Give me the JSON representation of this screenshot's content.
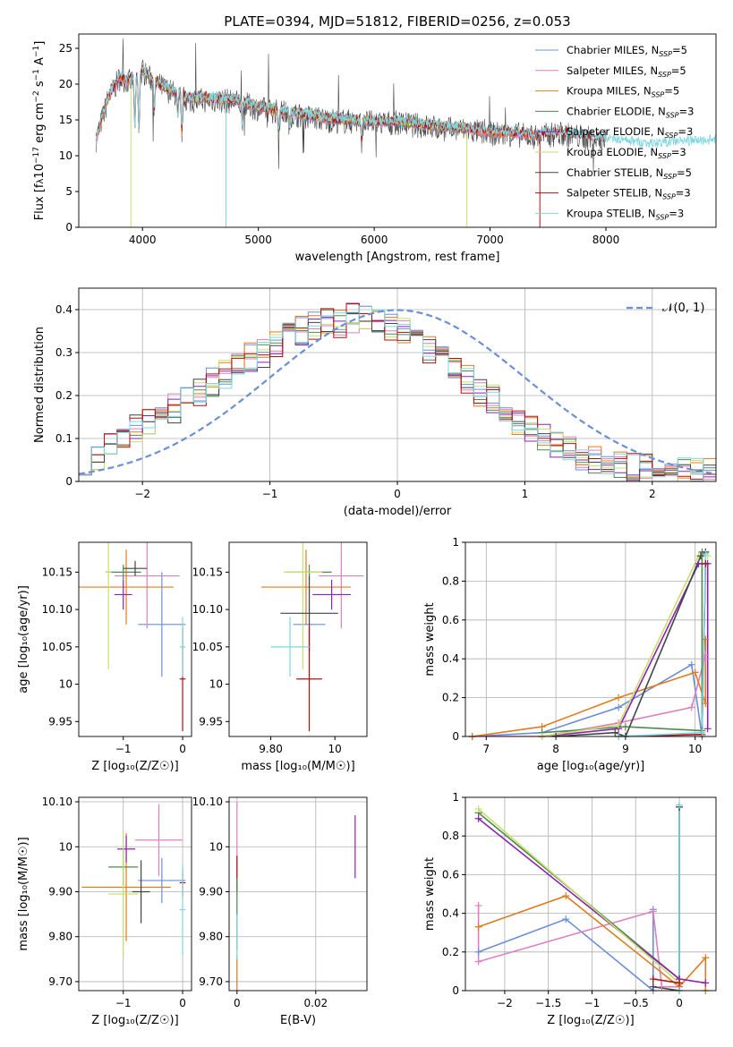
{
  "colors": {
    "Chabrier MILES": "#6a8fd8",
    "Salpeter MILES": "#e07fc0",
    "Kroupa MILES": "#e07b20",
    "Chabrier ELODIE": "#4f8a4f",
    "Salpeter ELODIE": "#8b22b0",
    "Kroupa ELODIE": "#c6e06a",
    "Chabrier STELIB": "#444444",
    "Salpeter STELIB": "#b01010",
    "Kroupa STELIB": "#7fd6e0",
    "normal": "#6a8fd8"
  },
  "chart_data": [
    {
      "id": "spectrum",
      "type": "line",
      "title": "PLATE=0394, MJD=51812, FIBERID=0256, z=0.053",
      "xlabel": "wavelength [Angstrom, rest frame]",
      "ylabel": "Flux [f",
      "ylabel_parts": [
        "Flux [f",
        "λ",
        "10",
        "−17",
        " erg cm",
        "−2",
        " s",
        "−1",
        " A",
        "−1",
        "]"
      ],
      "xlim": [
        3450,
        8950
      ],
      "ylim": [
        0,
        27
      ],
      "xticks": [
        4000,
        5000,
        6000,
        7000,
        8000
      ],
      "yticks": [
        0,
        5,
        10,
        15,
        20,
        25
      ],
      "grid": false,
      "legend_placement": "top-right",
      "legend": [
        {
          "name": "Chabrier MILES",
          "sub": "SSP",
          "n": "5"
        },
        {
          "name": "Salpeter MILES",
          "sub": "SSP",
          "n": "5"
        },
        {
          "name": "Kroupa MILES",
          "sub": "SSP",
          "n": "5"
        },
        {
          "name": "Chabrier ELODIE",
          "sub": "SSP",
          "n": "3"
        },
        {
          "name": "Salpeter ELODIE",
          "sub": "SSP",
          "n": "3"
        },
        {
          "name": "Kroupa ELODIE",
          "sub": "SSP",
          "n": "3"
        },
        {
          "name": "Chabrier STELIB",
          "sub": "SSP",
          "n": "5"
        },
        {
          "name": "Salpeter STELIB",
          "sub": "SSP",
          "n": "3"
        },
        {
          "name": "Kroupa STELIB",
          "sub": "SSP",
          "n": "3"
        }
      ],
      "anchors": [
        [
          3600,
          12.5
        ],
        [
          3700,
          18
        ],
        [
          3800,
          21
        ],
        [
          3900,
          20.5
        ],
        [
          4000,
          22
        ],
        [
          4100,
          20.5
        ],
        [
          4200,
          19.5
        ],
        [
          4400,
          18
        ],
        [
          4600,
          18
        ],
        [
          4800,
          17.8
        ],
        [
          5000,
          16.8
        ],
        [
          5200,
          16.3
        ],
        [
          5400,
          15.7
        ],
        [
          5600,
          15.2
        ],
        [
          5800,
          15
        ],
        [
          6000,
          14.8
        ],
        [
          6200,
          14.8
        ],
        [
          6400,
          14.4
        ],
        [
          6600,
          14
        ],
        [
          6800,
          13.8
        ],
        [
          7000,
          13.3
        ],
        [
          7200,
          13.2
        ],
        [
          7400,
          12.9
        ],
        [
          7600,
          13.3
        ],
        [
          7800,
          12.8
        ],
        [
          8000,
          12.3
        ],
        [
          8200,
          11.8
        ],
        [
          8400,
          11.5
        ],
        [
          8600,
          11.8
        ],
        [
          8800,
          11.9
        ],
        [
          8950,
          12
        ]
      ],
      "absorption_dips": [
        [
          3934,
          7
        ],
        [
          3969,
          8
        ],
        [
          4102,
          4
        ],
        [
          4305,
          3
        ],
        [
          4340,
          5
        ],
        [
          4861,
          3
        ],
        [
          5175,
          3
        ],
        [
          5270,
          2
        ],
        [
          5892,
          2.5
        ]
      ],
      "series_ranges": {
        "Chabrier MILES": [
          3600,
          7400
        ],
        "Salpeter MILES": [
          3600,
          7400
        ],
        "Kroupa MILES": [
          3600,
          7400
        ],
        "Chabrier ELODIE": [
          3900,
          6800
        ],
        "Salpeter ELODIE": [
          3900,
          6800
        ],
        "Kroupa ELODIE": [
          3900,
          6800
        ],
        "Chabrier STELIB": [
          3600,
          8000
        ],
        "Salpeter STELIB": [
          3600,
          8000
        ],
        "Kroupa STELIB": [
          3600,
          8950
        ]
      }
    },
    {
      "id": "residuals",
      "type": "line",
      "xlabel": "(data-model)/error",
      "ylabel": "Normed distribution",
      "xlim": [
        -2.5,
        2.5
      ],
      "ylim": [
        0,
        0.45
      ],
      "xticks": [
        -2,
        -1,
        0,
        1,
        2
      ],
      "yticks": [
        0.0,
        0.1,
        0.2,
        0.3,
        0.4
      ],
      "grid": true,
      "legend_placement": "top-right",
      "legend": [
        {
          "name": "𝒩(0, 1)"
        }
      ],
      "bin_width": 0.1,
      "histogram": [
        0.05,
        0.05,
        0.08,
        0.1,
        0.12,
        0.14,
        0.16,
        0.17,
        0.19,
        0.21,
        0.23,
        0.25,
        0.27,
        0.29,
        0.3,
        0.32,
        0.34,
        0.35,
        0.36,
        0.37,
        0.37,
        0.38,
        0.38,
        0.37,
        0.36,
        0.35,
        0.33,
        0.31,
        0.28,
        0.26,
        0.24,
        0.21,
        0.19,
        0.16,
        0.14,
        0.12,
        0.1,
        0.08,
        0.07,
        0.06,
        0.05,
        0.04,
        0.04,
        0.03,
        0.03,
        0.03,
        0.02,
        0.02,
        0.02,
        0.02
      ],
      "normal_curve": {
        "mean": 0,
        "sigma": 1
      }
    },
    {
      "id": "age-vs-Z",
      "type": "scatter",
      "xlabel": "Z [log₁₀(Z/Z☉)]",
      "ylabel": "age  [log₁₀(age/yr)]",
      "xlim": [
        -1.75,
        0.15
      ],
      "ylim": [
        9.93,
        10.19
      ],
      "xticks": [
        -1,
        0
      ],
      "yticks": [
        9.95,
        10.0,
        10.05,
        10.1,
        10.15
      ],
      "grid": false,
      "points": [
        {
          "s": "Chabrier MILES",
          "x": -0.35,
          "xe": 0.4,
          "y": 10.08,
          "ye": 0.07
        },
        {
          "s": "Salpeter MILES",
          "x": -0.6,
          "xe": 0.55,
          "y": 10.145,
          "ye": 0.07
        },
        {
          "s": "Kroupa MILES",
          "x": -0.95,
          "xe": 0.8,
          "y": 10.13,
          "ye": 0.05
        },
        {
          "s": "Chabrier ELODIE",
          "x": -1.0,
          "xe": 0.3,
          "y": 10.15,
          "ye": 0.01
        },
        {
          "s": "Salpeter ELODIE",
          "x": -1.0,
          "xe": 0.15,
          "y": 10.12,
          "ye": 0.02
        },
        {
          "s": "Kroupa ELODIE",
          "x": -1.25,
          "xe": 0.05,
          "y": 10.15,
          "ye": 0.13
        },
        {
          "s": "Chabrier STELIB",
          "x": -0.8,
          "xe": 0.2,
          "y": 10.155,
          "ye": 0.01
        },
        {
          "s": "Salpeter STELIB",
          "x": 0.0,
          "xe": 0.05,
          "y": 10.007,
          "ye": 0.07
        },
        {
          "s": "Kroupa STELIB",
          "x": 0.0,
          "xe": 0.05,
          "y": 10.05,
          "ye": 0.04
        }
      ]
    },
    {
      "id": "age-vs-mass",
      "type": "scatter",
      "xlabel": "mass [log₁₀(M/M☉)]",
      "ylabel": "",
      "xlim": [
        9.67,
        10.1
      ],
      "ylim": [
        9.93,
        10.19
      ],
      "xticks": [
        9.8,
        10.0
      ],
      "yticks": [
        9.95,
        10.0,
        10.05,
        10.1,
        10.15
      ],
      "grid": false,
      "points": [
        {
          "s": "Chabrier MILES",
          "x": 9.92,
          "xe": 0.05,
          "y": 10.08,
          "ye": 0.07
        },
        {
          "s": "Salpeter MILES",
          "x": 10.02,
          "xe": 0.07,
          "y": 10.145,
          "ye": 0.07
        },
        {
          "s": "Kroupa MILES",
          "x": 9.91,
          "xe": 0.14,
          "y": 10.13,
          "ye": 0.05
        },
        {
          "s": "Chabrier ELODIE",
          "x": 9.92,
          "xe": 0.07,
          "y": 10.15,
          "ye": 0.01
        },
        {
          "s": "Salpeter ELODIE",
          "x": 9.99,
          "xe": 0.06,
          "y": 10.12,
          "ye": 0.02
        },
        {
          "s": "Kroupa ELODIE",
          "x": 9.9,
          "xe": 0.06,
          "y": 10.15,
          "ye": 0.13
        },
        {
          "s": "Chabrier STELIB",
          "x": 9.92,
          "xe": 0.09,
          "y": 10.095,
          "ye": 0.05
        },
        {
          "s": "Salpeter STELIB",
          "x": 9.92,
          "xe": 0.04,
          "y": 10.007,
          "ye": 0.07
        },
        {
          "s": "Kroupa STELIB",
          "x": 9.86,
          "xe": 0.06,
          "y": 10.05,
          "ye": 0.04
        }
      ]
    },
    {
      "id": "mass-weight-vs-age",
      "type": "line",
      "xlabel": "age  [log₁₀(age/yr)]",
      "ylabel": "mass weight",
      "xlim": [
        6.7,
        10.3
      ],
      "ylim": [
        0,
        1.0
      ],
      "xticks": [
        7,
        8,
        9,
        10
      ],
      "yticks": [
        0.0,
        0.2,
        0.4,
        0.6,
        0.8,
        1.0
      ],
      "grid": true,
      "series": [
        {
          "s": "Chabrier MILES",
          "x": [
            6.8,
            7.8,
            8.9,
            9.95,
            10.1
          ],
          "y": [
            0.0,
            0.02,
            0.15,
            0.37,
            0.0
          ]
        },
        {
          "s": "Salpeter MILES",
          "x": [
            6.8,
            7.8,
            8.9,
            9.95,
            10.15,
            10.15
          ],
          "y": [
            0.0,
            0.0,
            0.07,
            0.15,
            0.42,
            0.4
          ]
        },
        {
          "s": "Kroupa MILES",
          "x": [
            6.8,
            7.8,
            8.9,
            10.0,
            10.15,
            10.15
          ],
          "y": [
            0.0,
            0.05,
            0.2,
            0.33,
            0.17,
            0.5
          ]
        },
        {
          "s": "Chabrier ELODIE",
          "x": [
            7.8,
            9.0,
            10.1,
            10.1
          ],
          "y": [
            0.02,
            0.05,
            0.03,
            0.95
          ]
        },
        {
          "s": "Salpeter ELODIE",
          "x": [
            7.8,
            8.9,
            10.05,
            10.18,
            10.18
          ],
          "y": [
            0.0,
            0.04,
            0.89,
            0.89,
            0.04
          ]
        },
        {
          "s": "Kroupa ELODIE",
          "x": [
            7.8,
            8.9,
            10.05,
            10.18
          ],
          "y": [
            0.0,
            0.06,
            0.93,
            0.93
          ]
        },
        {
          "s": "Chabrier STELIB",
          "x": [
            8.0,
            8.85,
            9.0,
            10.08,
            10.15
          ],
          "y": [
            0.0,
            0.02,
            0.0,
            0.93,
            0.95
          ]
        },
        {
          "s": "Salpeter STELIB",
          "x": [
            8.9,
            10.1,
            10.15
          ],
          "y": [
            0.0,
            0.01,
            0.89
          ]
        },
        {
          "s": "Kroupa STELIB",
          "x": [
            8.9,
            10.1,
            10.15
          ],
          "y": [
            0.0,
            0.02,
            0.94
          ]
        }
      ]
    },
    {
      "id": "mass-vs-Z",
      "type": "scatter",
      "xlabel": "Z [log₁₀(Z/Z☉)]",
      "ylabel": "mass [log₁₀(M/M☉)]",
      "xlim": [
        -1.75,
        0.15
      ],
      "ylim": [
        9.68,
        10.11
      ],
      "xticks": [
        -1,
        0
      ],
      "yticks": [
        9.7,
        9.8,
        9.9,
        10.0,
        10.1
      ],
      "grid": true,
      "points": [
        {
          "s": "Chabrier MILES",
          "x": -0.35,
          "xe": 0.4,
          "y": 9.925,
          "ye": 0.05
        },
        {
          "s": "Salpeter MILES",
          "x": -0.4,
          "xe": 0.4,
          "y": 10.015,
          "ye": 0.08
        },
        {
          "s": "Kroupa MILES",
          "x": -0.95,
          "xe": 0.75,
          "y": 9.91,
          "ye": 0.12
        },
        {
          "s": "Chabrier ELODIE",
          "x": -1.0,
          "xe": 0.25,
          "y": 9.955,
          "ye": 0.04
        },
        {
          "s": "Salpeter ELODIE",
          "x": -0.95,
          "xe": 0.15,
          "y": 9.995,
          "ye": 0.03
        },
        {
          "s": "Kroupa ELODIE",
          "x": -1.0,
          "xe": 0.25,
          "y": 9.895,
          "ye": 0.14
        },
        {
          "s": "Chabrier STELIB",
          "x": -0.7,
          "xe": 0.15,
          "y": 9.9,
          "ye": 0.07
        },
        {
          "s": "Salpeter STELIB",
          "x": 0.0,
          "xe": 0.05,
          "y": 9.92,
          "ye": 0.03
        },
        {
          "s": "Kroupa STELIB",
          "x": 0.0,
          "xe": 0.05,
          "y": 9.86,
          "ye": 0.1
        }
      ]
    },
    {
      "id": "mass-vs-ebv",
      "type": "scatter",
      "xlabel": "E(B-V)",
      "ylabel": "",
      "xlim": [
        -0.002,
        0.033
      ],
      "ylim": [
        9.68,
        10.11
      ],
      "xticks": [
        0.0,
        0.02
      ],
      "yticks": [
        9.7,
        9.8,
        9.9,
        10.0,
        10.1
      ],
      "grid": true,
      "points": [
        {
          "s": "Salpeter MILES",
          "x": 0.0,
          "y": 10.0,
          "ye": 0.1
        },
        {
          "s": "Kroupa MILES",
          "x": 0.0,
          "y": 9.71,
          "ye": 0.05
        },
        {
          "s": "Salpeter STELIB",
          "x": 0.0,
          "y": 9.94,
          "ye": 0.04
        },
        {
          "s": "Chabrier ELODIE",
          "x": 0.0,
          "y": 9.85,
          "ye": 0.08
        },
        {
          "s": "Kroupa STELIB",
          "x": 0.0,
          "y": 9.8,
          "ye": 0.05
        },
        {
          "s": "Salpeter ELODIE",
          "x": 0.03,
          "y": 10.0,
          "ye": 0.07
        }
      ]
    },
    {
      "id": "mass-weight-vs-Z",
      "type": "line",
      "xlabel": "Z [log₁₀(Z/Z☉)]",
      "ylabel": "mass weight",
      "xlim": [
        -2.45,
        0.42
      ],
      "ylim": [
        0,
        1.0
      ],
      "xticks": [
        -2.0,
        -1.5,
        -1.0,
        -0.5,
        0.0
      ],
      "yticks": [
        0.0,
        0.2,
        0.4,
        0.6,
        0.8,
        1.0
      ],
      "grid": true,
      "series": [
        {
          "s": "Chabrier MILES",
          "x": [
            -2.3,
            -1.3,
            -0.3,
            -0.3
          ],
          "y": [
            0.2,
            0.37,
            0.0,
            0.42
          ]
        },
        {
          "s": "Salpeter MILES",
          "x": [
            -2.3,
            -2.3,
            -0.3,
            -0.2,
            0.0
          ],
          "y": [
            0.44,
            0.15,
            0.41,
            0.02,
            0.02
          ]
        },
        {
          "s": "Kroupa MILES",
          "x": [
            -2.3,
            -1.3,
            0.0,
            0.3,
            0.3
          ],
          "y": [
            0.33,
            0.49,
            0.02,
            0.17,
            0.0
          ]
        },
        {
          "s": "Chabrier ELODIE",
          "x": [
            -2.3,
            0.0,
            0.0
          ],
          "y": [
            0.92,
            0.06,
            0.95
          ]
        },
        {
          "s": "Salpeter ELODIE",
          "x": [
            -2.3,
            0.0,
            0.3
          ],
          "y": [
            0.89,
            0.06,
            0.04
          ]
        },
        {
          "s": "Kroupa ELODIE",
          "x": [
            -2.3,
            0.0
          ],
          "y": [
            0.94,
            0.04
          ]
        },
        {
          "s": "Chabrier STELIB",
          "x": [
            -0.3,
            0.0,
            0.0
          ],
          "y": [
            0.02,
            0.0,
            0.95
          ]
        },
        {
          "s": "Salpeter STELIB",
          "x": [
            -0.3,
            0.0
          ],
          "y": [
            0.06,
            0.04
          ]
        },
        {
          "s": "Kroupa STELIB",
          "x": [
            0.0,
            0.0
          ],
          "y": [
            0.0,
            0.96
          ]
        }
      ]
    }
  ]
}
